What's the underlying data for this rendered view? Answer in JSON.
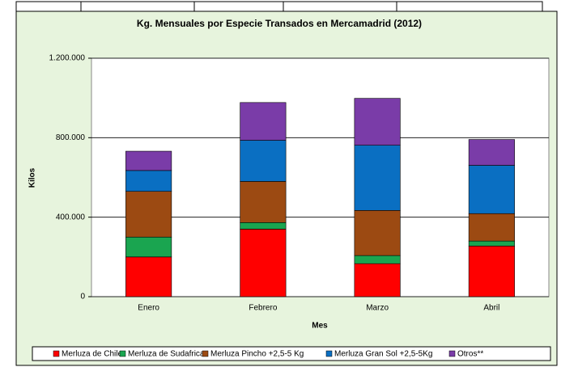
{
  "chart_data": {
    "type": "stacked_bar",
    "title": "Kg. Mensuales por Especie Transados en Mercamadrid (2012)",
    "x_label": "Mes",
    "y_label": "Kilos",
    "categories": [
      "Enero",
      "Febrero",
      "Marzo",
      "Abril"
    ],
    "series": [
      {
        "name": "Merluza de Chile",
        "color": "#ff0000",
        "values": [
          200000,
          340000,
          166000,
          255000
        ]
      },
      {
        "name": "Merluza de Sudafrica",
        "color": "#1aa550",
        "values": [
          100000,
          33000,
          41000,
          25000
        ]
      },
      {
        "name": "Merluza Pincho +2,5-5 Kg",
        "color": "#9c4a12",
        "values": [
          230000,
          207000,
          227000,
          138000
        ]
      },
      {
        "name": "Merluza Gran Sol +2,5-5Kg",
        "color": "#0a6fc2",
        "values": [
          105000,
          207000,
          328000,
          243000
        ]
      },
      {
        "name": "Otros**",
        "color": "#7a3ca8",
        "values": [
          97000,
          190000,
          236000,
          130000
        ]
      }
    ],
    "ylim": [
      0,
      1200000
    ],
    "yticks": [
      0,
      {
        "value": 400000,
        "label": "400.000"
      },
      {
        "value": 800000,
        "label": "800.000"
      },
      {
        "value": 1200000,
        "label": "1.200.000"
      }
    ],
    "grid": true
  }
}
